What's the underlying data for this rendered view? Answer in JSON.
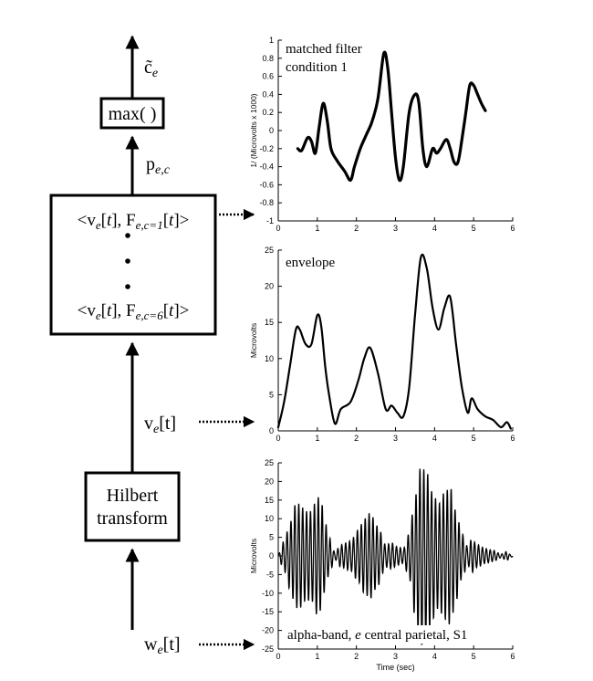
{
  "flow": {
    "output_label": "c̃",
    "output_sub": "e",
    "max_label": "max( )",
    "p_label": "p",
    "p_sub": "e,c",
    "inner_top": {
      "open": "<v",
      "sub1": "e",
      "t1": "[",
      "tvar": "t",
      "t2": "], F",
      "sub2": "e,c=1",
      "t3": "[",
      "tvar2": "t",
      "close": "]>"
    },
    "inner_bottom": {
      "open": "<v",
      "sub1": "e",
      "t1": "[",
      "tvar": "t",
      "t2": "], F",
      "sub2": "e,c=6",
      "t3": "[",
      "tvar2": "t",
      "close": "]>"
    },
    "v_label": "v",
    "v_sub": "e",
    "v_t": "[t]",
    "hilbert_line1": "Hilbert",
    "hilbert_line2": "transform",
    "w_label": "w",
    "w_sub": "e",
    "w_t": "[t]"
  },
  "chart_data": [
    {
      "type": "line",
      "annotation_line1": "matched filter",
      "annotation_line2": "condition 1",
      "ylabel": "1/ (Microvolts x 1000)",
      "xlabel": "",
      "xlim": [
        0,
        6
      ],
      "ylim": [
        -1,
        1
      ],
      "x_ticks": [
        "0",
        "1",
        "2",
        "3",
        "4",
        "5",
        "6"
      ],
      "y_ticks": [
        "-1",
        "-0.8",
        "-0.6",
        "-0.4",
        "-0.2",
        "0",
        "0.2",
        "0.4",
        "0.6",
        "0.8",
        "1"
      ],
      "x": [
        0.5,
        0.6,
        0.75,
        0.85,
        0.95,
        1.05,
        1.15,
        1.25,
        1.35,
        1.5,
        1.7,
        1.85,
        1.95,
        2.1,
        2.25,
        2.4,
        2.55,
        2.7,
        2.8,
        2.9,
        3.0,
        3.1,
        3.2,
        3.35,
        3.5,
        3.6,
        3.7,
        3.8,
        3.95,
        4.05,
        4.15,
        4.3,
        4.4,
        4.5,
        4.6,
        4.7,
        4.8,
        4.9,
        5.0,
        5.1,
        5.2,
        5.3
      ],
      "y": [
        -0.2,
        -0.22,
        -0.08,
        -0.12,
        -0.25,
        0.05,
        0.3,
        0.12,
        -0.2,
        -0.33,
        -0.45,
        -0.55,
        -0.4,
        -0.2,
        -0.05,
        0.1,
        0.35,
        0.85,
        0.7,
        0.2,
        -0.3,
        -0.55,
        -0.4,
        0.2,
        0.4,
        0.3,
        -0.2,
        -0.4,
        -0.2,
        -0.25,
        -0.2,
        -0.1,
        -0.2,
        -0.35,
        -0.35,
        -0.1,
        0.2,
        0.5,
        0.5,
        0.4,
        0.3,
        0.22
      ]
    },
    {
      "type": "line",
      "annotation_line1": "envelope",
      "ylabel": "Microvolts",
      "xlabel": "",
      "xlim": [
        0,
        6
      ],
      "ylim": [
        0,
        25
      ],
      "x_ticks": [
        "0",
        "1",
        "2",
        "3",
        "4",
        "5",
        "6"
      ],
      "y_ticks": [
        "0",
        "5",
        "10",
        "15",
        "20",
        "25"
      ],
      "x": [
        0.0,
        0.15,
        0.3,
        0.45,
        0.55,
        0.7,
        0.85,
        1.0,
        1.1,
        1.2,
        1.3,
        1.45,
        1.6,
        1.85,
        2.05,
        2.2,
        2.35,
        2.55,
        2.75,
        2.9,
        3.05,
        3.2,
        3.35,
        3.5,
        3.65,
        3.8,
        3.95,
        4.1,
        4.25,
        4.4,
        4.55,
        4.7,
        4.85,
        4.95,
        5.1,
        5.3,
        5.5,
        5.7,
        5.85,
        5.95
      ],
      "y": [
        0.5,
        4,
        9,
        14,
        14,
        12,
        12,
        16,
        14.5,
        9,
        5,
        1,
        3,
        4,
        7,
        10,
        11.5,
        8,
        3,
        3.5,
        2.5,
        2,
        6,
        16,
        24,
        22.5,
        17,
        14,
        17,
        18.5,
        12,
        6,
        2.5,
        4.5,
        3,
        2,
        1.5,
        0.5,
        1.2,
        0.3
      ]
    },
    {
      "type": "line",
      "annotation_line1": "alpha-band, ",
      "annotation_italic": "e",
      "annotation_rest": " central parietal, S1",
      "ylabel": "Microvolts",
      "xlabel": "Time (sec)",
      "xlim": [
        0,
        6
      ],
      "ylim": [
        -25,
        25
      ],
      "x_ticks": [
        "0",
        "1",
        "2",
        "3",
        "4",
        "5",
        "6"
      ],
      "y_ticks": [
        "-25",
        "-20",
        "-15",
        "-10",
        "-5",
        "0",
        "5",
        "10",
        "15",
        "20",
        "25"
      ],
      "carrier_hz": 10,
      "envelope_x": [
        0.0,
        0.15,
        0.3,
        0.45,
        0.55,
        0.7,
        0.85,
        1.0,
        1.1,
        1.2,
        1.3,
        1.45,
        1.6,
        1.85,
        2.05,
        2.2,
        2.35,
        2.55,
        2.75,
        2.9,
        3.05,
        3.2,
        3.35,
        3.5,
        3.65,
        3.8,
        3.95,
        4.1,
        4.25,
        4.4,
        4.55,
        4.7,
        4.85,
        4.95,
        5.1,
        5.3,
        5.5,
        5.7,
        5.85,
        5.95
      ],
      "envelope_y": [
        0.5,
        4,
        9,
        14,
        14,
        12,
        12,
        16,
        14.5,
        9,
        5,
        1,
        3,
        4,
        7,
        10,
        11.5,
        8,
        3,
        3.5,
        2.5,
        2,
        6,
        16,
        24,
        22.5,
        17,
        14,
        17,
        18.5,
        12,
        6,
        2.5,
        4.5,
        3,
        2,
        1.5,
        0.5,
        1.2,
        0.3
      ]
    }
  ]
}
